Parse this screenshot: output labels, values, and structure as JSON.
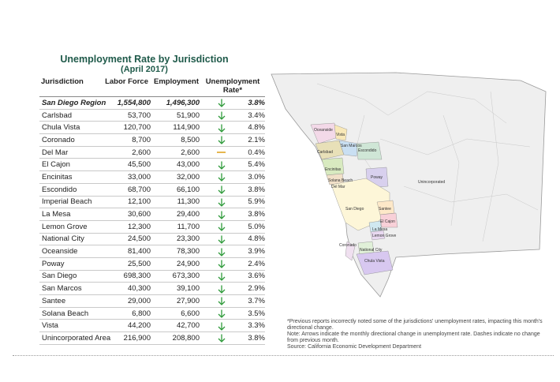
{
  "title": "Unemployment Rate by Jurisdiction",
  "subtitle": "(April 2017)",
  "columns": {
    "jurisdiction": "Jurisdiction",
    "labor_force": "Labor Force",
    "employment": "Employment",
    "unemployment_rate": "Unemployment Rate*"
  },
  "rows": [
    {
      "name": "San Diego Region",
      "labor_force": "1,554,800",
      "employment": "1,496,300",
      "change": "down",
      "rate": "3.8%"
    },
    {
      "name": "Carlsbad",
      "labor_force": "53,700",
      "employment": "51,900",
      "change": "down",
      "rate": "3.4%"
    },
    {
      "name": "Chula Vista",
      "labor_force": "120,700",
      "employment": "114,900",
      "change": "down",
      "rate": "4.8%"
    },
    {
      "name": "Coronado",
      "labor_force": "8,700",
      "employment": "8,500",
      "change": "down",
      "rate": "2.1%"
    },
    {
      "name": "Del Mar",
      "labor_force": "2,600",
      "employment": "2,600",
      "change": "none",
      "rate": "0.4%"
    },
    {
      "name": "El Cajon",
      "labor_force": "45,500",
      "employment": "43,000",
      "change": "down",
      "rate": "5.4%"
    },
    {
      "name": "Encinitas",
      "labor_force": "33,000",
      "employment": "32,000",
      "change": "down",
      "rate": "3.0%"
    },
    {
      "name": "Escondido",
      "labor_force": "68,700",
      "employment": "66,100",
      "change": "down",
      "rate": "3.8%"
    },
    {
      "name": "Imperial Beach",
      "labor_force": "12,100",
      "employment": "11,300",
      "change": "down",
      "rate": "5.9%"
    },
    {
      "name": "La Mesa",
      "labor_force": "30,600",
      "employment": "29,400",
      "change": "down",
      "rate": "3.8%"
    },
    {
      "name": "Lemon Grove",
      "labor_force": "12,300",
      "employment": "11,700",
      "change": "down",
      "rate": "5.0%"
    },
    {
      "name": "National City",
      "labor_force": "24,500",
      "employment": "23,300",
      "change": "down",
      "rate": "4.8%"
    },
    {
      "name": "Oceanside",
      "labor_force": "81,400",
      "employment": "78,300",
      "change": "down",
      "rate": "3.9%"
    },
    {
      "name": "Poway",
      "labor_force": "25,500",
      "employment": "24,900",
      "change": "down",
      "rate": "2.4%"
    },
    {
      "name": "San Diego",
      "labor_force": "698,300",
      "employment": "673,300",
      "change": "down",
      "rate": "3.6%"
    },
    {
      "name": "San Marcos",
      "labor_force": "40,300",
      "employment": "39,100",
      "change": "down",
      "rate": "2.9%"
    },
    {
      "name": "Santee",
      "labor_force": "29,000",
      "employment": "27,900",
      "change": "down",
      "rate": "3.7%"
    },
    {
      "name": "Solana Beach",
      "labor_force": "6,800",
      "employment": "6,600",
      "change": "down",
      "rate": "3.5%"
    },
    {
      "name": "Vista",
      "labor_force": "44,200",
      "employment": "42,700",
      "change": "down",
      "rate": "3.3%"
    },
    {
      "name": "Unincorporated Area",
      "labor_force": "216,900",
      "employment": "208,800",
      "change": "down",
      "rate": "3.8%"
    }
  ],
  "map_labels": {
    "oceanside": "Oceanside",
    "vista": "Vista",
    "carlsbad": "Carlsbad",
    "san_marcos": "San Marcos",
    "escondido": "Escondido",
    "encinitas": "Encinitas",
    "solana_beach": "Solana Beach",
    "del_mar": "Del Mar",
    "poway": "Poway",
    "unincorporated": "Unincorporated",
    "san_diego": "San Diego",
    "santee": "Santee",
    "el_cajon": "El Cajon",
    "la_mesa": "La Mesa",
    "lemon_grove": "Lemon Grove",
    "coronado": "Coronado",
    "national_city": "National City",
    "chula_vista": "Chula Vista"
  },
  "notes": [
    "*Previous reports incorrectly noted some of the jurisdictions' unemployment rates, impacting this month's directional change.",
    "Note: Arrows indicate the monthly directional change in unemployment rate. Dashes indicate no change from previous month.",
    "Source: California Economic Development Department"
  ],
  "colors": {
    "title": "#1f5a4a",
    "arrow": "#2e9a3a",
    "dash": "#e6b64f"
  }
}
